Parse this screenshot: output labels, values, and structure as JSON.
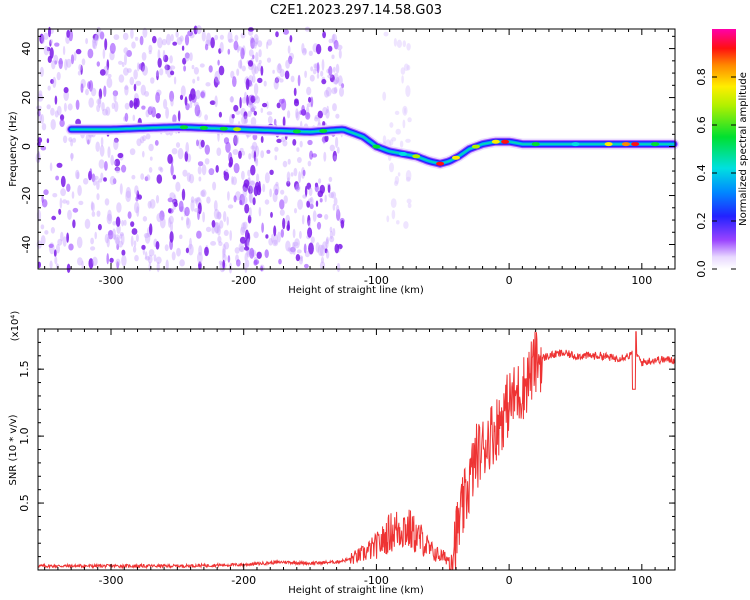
{
  "title": "C2E1.2023.297.14.58.G03",
  "chart_data": [
    {
      "type": "heatmap",
      "xlabel": "Height of straight line (km)",
      "ylabel": "Frequency (Hz)",
      "xlim": [
        -355,
        125
      ],
      "ylim": [
        -50,
        48
      ],
      "xticks": [
        -300,
        -200,
        -100,
        0,
        100
      ],
      "yticks": [
        -40,
        -20,
        0,
        20,
        40
      ],
      "colorbar": {
        "label": "Normalized spectral amplitude",
        "range": [
          0,
          1
        ],
        "ticks": [
          0.0,
          0.2,
          0.4,
          0.6,
          0.8
        ],
        "tick_labels": [
          "0.0",
          "0.2",
          "0.4",
          "0.6",
          "0.8"
        ]
      },
      "ridge": {
        "x": [
          -330,
          -300,
          -250,
          -200,
          -150,
          -125,
          -110,
          -100,
          -90,
          -80,
          -70,
          -60,
          -52,
          -45,
          -38,
          -30,
          -20,
          -10,
          0,
          10,
          30,
          60,
          90,
          110,
          125
        ],
        "frequency_hz": [
          7,
          7,
          8,
          7,
          6,
          7,
          4,
          0,
          -2,
          -3,
          -4,
          -6,
          -7,
          -6,
          -4,
          -1,
          1,
          2,
          2,
          1,
          1,
          1,
          1,
          1,
          1
        ]
      }
    },
    {
      "type": "line",
      "xlabel": "Height of straight line (km)",
      "ylabel": "SNR (10 * v/v)",
      "y_scale_note": "(x10⁴)",
      "xlim": [
        -355,
        125
      ],
      "ylim": [
        0,
        1.8
      ],
      "xticks": [
        -300,
        -200,
        -100,
        0,
        100
      ],
      "yticks": [
        0.5,
        1.0,
        1.5
      ],
      "ytick_labels": [
        "0.5",
        "1.0",
        "1.5"
      ],
      "series": [
        {
          "color": "#ee3333",
          "x": [
            -355,
            -300,
            -250,
            -200,
            -170,
            -150,
            -130,
            -120,
            -110,
            -100,
            -95,
            -90,
            -85,
            -80,
            -75,
            -70,
            -65,
            -60,
            -55,
            -50,
            -45,
            -40,
            -35,
            -30,
            -25,
            -20,
            -15,
            -10,
            -5,
            0,
            5,
            10,
            15,
            20,
            25,
            30,
            40,
            50,
            60,
            70,
            80,
            90,
            95,
            100,
            110,
            125
          ],
          "values": [
            0.03,
            0.03,
            0.03,
            0.04,
            0.06,
            0.05,
            0.06,
            0.08,
            0.12,
            0.18,
            0.22,
            0.28,
            0.3,
            0.32,
            0.3,
            0.25,
            0.22,
            0.15,
            0.12,
            0.1,
            0.08,
            0.25,
            0.45,
            0.65,
            0.85,
            0.9,
            1.0,
            1.05,
            1.15,
            1.25,
            1.3,
            1.35,
            1.45,
            1.55,
            1.58,
            1.6,
            1.62,
            1.6,
            1.6,
            1.6,
            1.58,
            1.6,
            1.62,
            1.55,
            1.57,
            1.57
          ]
        }
      ]
    }
  ]
}
